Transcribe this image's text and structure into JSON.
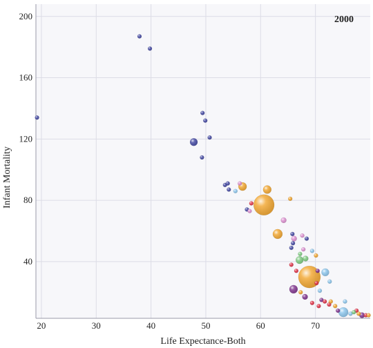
{
  "chart_data": {
    "type": "scatter",
    "title": "",
    "annotation": "2000",
    "xlabel": "Life Expectance-Both",
    "ylabel": "Infant Mortality",
    "xlim": [
      19,
      80
    ],
    "ylim": [
      3,
      208
    ],
    "xticks": [
      20,
      30,
      40,
      50,
      60,
      70
    ],
    "yticks": [
      40,
      80,
      120,
      160,
      200
    ],
    "grid": true,
    "legend": "none",
    "colors": {
      "navy": "#3a3f9e",
      "orange": "#f2a225",
      "pink": "#dd8ccf",
      "lightblue": "#86c3ec",
      "green": "#77c87a",
      "red": "#e0283e",
      "purple": "#7a2a8a"
    },
    "points": [
      {
        "x": 19.2,
        "y": 134,
        "size": 3,
        "color": "navy"
      },
      {
        "x": 37.9,
        "y": 187,
        "size": 3,
        "color": "navy"
      },
      {
        "x": 39.8,
        "y": 179,
        "size": 3,
        "color": "navy"
      },
      {
        "x": 49.4,
        "y": 137,
        "size": 3,
        "color": "navy"
      },
      {
        "x": 49.9,
        "y": 132,
        "size": 3,
        "color": "navy"
      },
      {
        "x": 50.7,
        "y": 121,
        "size": 3,
        "color": "navy"
      },
      {
        "x": 47.8,
        "y": 118,
        "size": 5.5,
        "color": "navy"
      },
      {
        "x": 49.3,
        "y": 108,
        "size": 3,
        "color": "navy"
      },
      {
        "x": 53.5,
        "y": 90,
        "size": 3,
        "color": "navy"
      },
      {
        "x": 54.0,
        "y": 91,
        "size": 3,
        "color": "navy"
      },
      {
        "x": 54.2,
        "y": 87,
        "size": 3,
        "color": "navy"
      },
      {
        "x": 55.4,
        "y": 86,
        "size": 3,
        "color": "lightblue"
      },
      {
        "x": 56.2,
        "y": 91,
        "size": 3,
        "color": "pink"
      },
      {
        "x": 56.7,
        "y": 89,
        "size": 6,
        "color": "orange"
      },
      {
        "x": 61.2,
        "y": 87,
        "size": 6,
        "color": "orange"
      },
      {
        "x": 65.4,
        "y": 81,
        "size": 3,
        "color": "orange"
      },
      {
        "x": 60.6,
        "y": 77,
        "size": 15,
        "color": "orange"
      },
      {
        "x": 58.3,
        "y": 78,
        "size": 3,
        "color": "red"
      },
      {
        "x": 57.5,
        "y": 74,
        "size": 3,
        "color": "navy"
      },
      {
        "x": 58.0,
        "y": 73,
        "size": 3,
        "color": "pink"
      },
      {
        "x": 64.2,
        "y": 67,
        "size": 4,
        "color": "pink"
      },
      {
        "x": 63.1,
        "y": 58,
        "size": 7,
        "color": "orange"
      },
      {
        "x": 65.8,
        "y": 58,
        "size": 3,
        "color": "navy"
      },
      {
        "x": 66.1,
        "y": 55,
        "size": 4,
        "color": "pink"
      },
      {
        "x": 67.6,
        "y": 57,
        "size": 3,
        "color": "pink"
      },
      {
        "x": 68.4,
        "y": 55,
        "size": 3,
        "color": "navy"
      },
      {
        "x": 65.9,
        "y": 52,
        "size": 3,
        "color": "navy"
      },
      {
        "x": 65.6,
        "y": 49,
        "size": 3,
        "color": "navy"
      },
      {
        "x": 67.8,
        "y": 48,
        "size": 3,
        "color": "pink"
      },
      {
        "x": 69.4,
        "y": 47,
        "size": 3,
        "color": "lightblue"
      },
      {
        "x": 67.2,
        "y": 45,
        "size": 3,
        "color": "green"
      },
      {
        "x": 67.1,
        "y": 41,
        "size": 5.5,
        "color": "green"
      },
      {
        "x": 68.2,
        "y": 42,
        "size": 4,
        "color": "green"
      },
      {
        "x": 70.1,
        "y": 44,
        "size": 3,
        "color": "orange"
      },
      {
        "x": 65.6,
        "y": 38,
        "size": 3,
        "color": "red"
      },
      {
        "x": 66.5,
        "y": 34,
        "size": 3,
        "color": "red"
      },
      {
        "x": 68.9,
        "y": 30,
        "size": 16,
        "color": "orange"
      },
      {
        "x": 70.4,
        "y": 34,
        "size": 3,
        "color": "purple"
      },
      {
        "x": 71.8,
        "y": 33,
        "size": 5.5,
        "color": "lightblue"
      },
      {
        "x": 70.2,
        "y": 26,
        "size": 3,
        "color": "red"
      },
      {
        "x": 72.6,
        "y": 27,
        "size": 3,
        "color": "lightblue"
      },
      {
        "x": 70.8,
        "y": 21,
        "size": 3,
        "color": "lightblue"
      },
      {
        "x": 66.0,
        "y": 22,
        "size": 6,
        "color": "purple"
      },
      {
        "x": 67.3,
        "y": 20,
        "size": 3,
        "color": "orange"
      },
      {
        "x": 68.1,
        "y": 17,
        "size": 4,
        "color": "purple"
      },
      {
        "x": 69.4,
        "y": 13,
        "size": 3,
        "color": "red"
      },
      {
        "x": 70.6,
        "y": 11,
        "size": 3,
        "color": "red"
      },
      {
        "x": 71.1,
        "y": 15,
        "size": 3,
        "color": "purple"
      },
      {
        "x": 71.7,
        "y": 14,
        "size": 3,
        "color": "red"
      },
      {
        "x": 72.5,
        "y": 12,
        "size": 3,
        "color": "red"
      },
      {
        "x": 73.6,
        "y": 11,
        "size": 3,
        "color": "orange"
      },
      {
        "x": 72.8,
        "y": 14,
        "size": 3,
        "color": "orange"
      },
      {
        "x": 75.4,
        "y": 14,
        "size": 3,
        "color": "lightblue"
      },
      {
        "x": 74.1,
        "y": 8,
        "size": 3,
        "color": "purple"
      },
      {
        "x": 75.1,
        "y": 7,
        "size": 7,
        "color": "lightblue"
      },
      {
        "x": 76.4,
        "y": 6,
        "size": 3,
        "color": "lightblue"
      },
      {
        "x": 77.5,
        "y": 8,
        "size": 3,
        "color": "red"
      },
      {
        "x": 77.0,
        "y": 7,
        "size": 3,
        "color": "green"
      },
      {
        "x": 77.9,
        "y": 6,
        "size": 3,
        "color": "orange"
      },
      {
        "x": 78.5,
        "y": 5,
        "size": 4,
        "color": "purple"
      },
      {
        "x": 79.2,
        "y": 5,
        "size": 3,
        "color": "red"
      },
      {
        "x": 79.7,
        "y": 5,
        "size": 3,
        "color": "orange"
      }
    ]
  }
}
